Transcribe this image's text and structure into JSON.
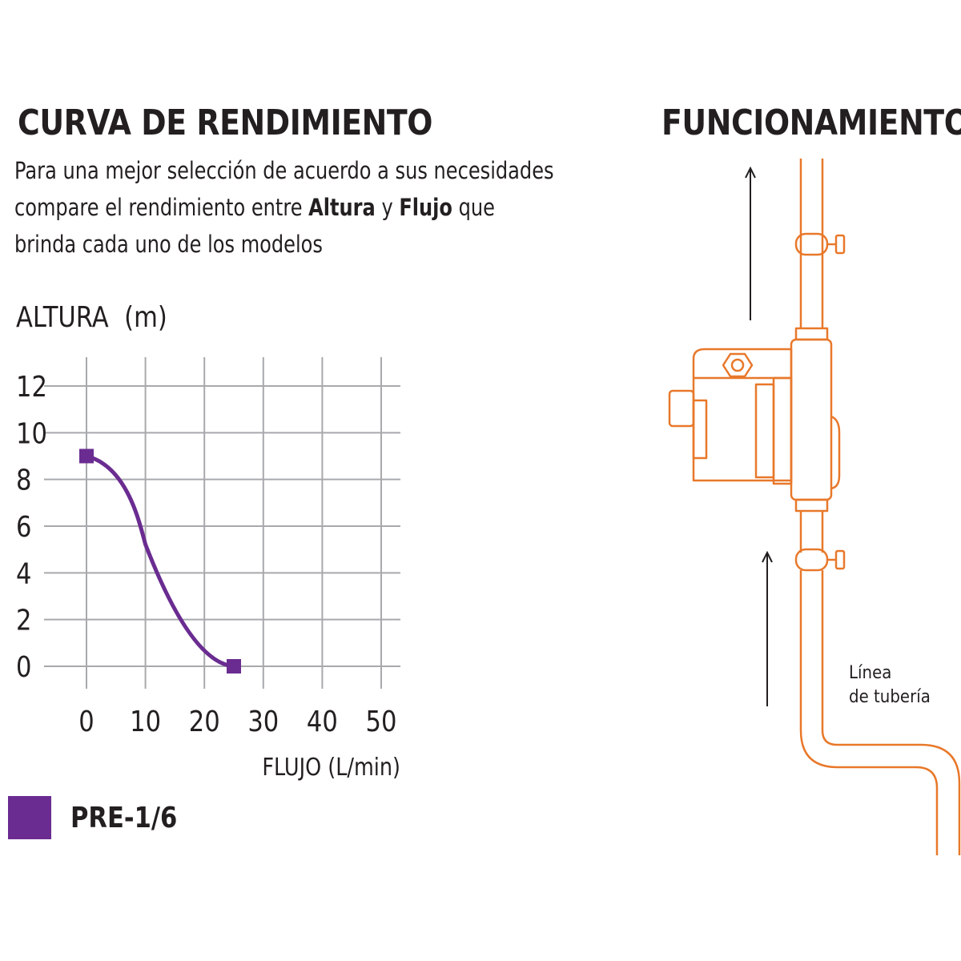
{
  "performance": {
    "title": "CURVA DE RENDIMIENTO",
    "intro": {
      "line1": "Para una mejor selección de acuerdo a sus necesidades",
      "line2_pre": "compare el rendimiento entre ",
      "line2_bold1": "Altura",
      "line2_mid": " y ",
      "line2_bold2": "Flujo",
      "line2_post": " que",
      "line3": "brinda cada uno de los modelos"
    }
  },
  "chart_data": {
    "type": "line",
    "title": "",
    "ylabel": "ALTURA  (m)",
    "xlabel": "FLUJO (L/min)",
    "x_ticks": [
      0,
      10,
      20,
      30,
      40,
      50
    ],
    "y_ticks": [
      0,
      2,
      4,
      6,
      8,
      10,
      12
    ],
    "xlim": [
      0,
      50
    ],
    "ylim": [
      0,
      12
    ],
    "grid": true,
    "legend_position": "bottom-left",
    "series": [
      {
        "name": "PRE-1/6",
        "color": "#6a2c91",
        "points": [
          [
            0,
            9
          ],
          [
            25,
            0
          ]
        ]
      }
    ]
  },
  "operation": {
    "title": "FUNCIONAMIENTO",
    "pipe_label_line1": "Línea",
    "pipe_label_line2": "de tubería",
    "line_color": "#e8782a"
  }
}
